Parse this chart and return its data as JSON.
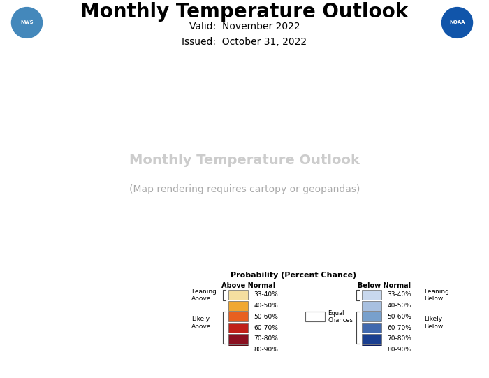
{
  "title": "Monthly Temperature Outlook",
  "valid": "Valid:  November 2022",
  "issued": "Issued:  October 31, 2022",
  "title_fontsize": 20,
  "subtitle_fontsize": 10,
  "background_color": "#ffffff",
  "legend_title": "Probability (Percent Chance)",
  "above_normal_colors": [
    "#F5DFA0",
    "#F0A832",
    "#E86020",
    "#C02018",
    "#8B1020",
    "#5C0810"
  ],
  "above_normal_labels": [
    "33-40%",
    "40-50%",
    "50-60%",
    "60-70%",
    "70-80%",
    "80-90%"
  ],
  "below_normal_colors": [
    "#C8D8EE",
    "#A8C0E0",
    "#78A0CC",
    "#4169AE",
    "#1A3F90",
    "#0A1A60"
  ],
  "below_normal_labels": [
    "33-40%",
    "40-50%",
    "50-60%",
    "60-70%",
    "70-80%",
    "80-90%"
  ],
  "equal_chances_color": "#FFFFFF",
  "state_boundary_color": "#888888",
  "state_fill_equal": "#F2F2F2",
  "state_colors": {
    "WA": "#C8D8EE",
    "OR": "#F2F2F2",
    "CA": "#F2F2F2",
    "NV": "#F2F2F2",
    "ID": "#F2F2F2",
    "UT": "#F5DFA0",
    "AZ": "#F0A832",
    "MT": "#C8D8EE",
    "WY": "#F2F2F2",
    "CO": "#F5DFA0",
    "NM": "#F0A832",
    "ND": "#F5DFA0",
    "SD": "#F0A832",
    "NE": "#F0A832",
    "KS": "#F0A832",
    "OK": "#F0A832",
    "TX": "#F0A832",
    "MN": "#F5DFA0",
    "IA": "#F0A832",
    "MO": "#F0A832",
    "AR": "#F0A832",
    "LA": "#F0A832",
    "WI": "#F5DFA0",
    "IL": "#F0A832",
    "IN": "#F0A832",
    "MI": "#F5DFA0",
    "OH": "#E86020",
    "KY": "#F0A832",
    "TN": "#F0A832",
    "MS": "#F0A832",
    "AL": "#F0A832",
    "GA": "#E86020",
    "FL": "#F0A832",
    "SC": "#E86020",
    "NC": "#E86020",
    "VA": "#E86020",
    "WV": "#E86020",
    "PA": "#E86020",
    "NY": "#C02018",
    "NJ": "#E86020",
    "DE": "#E86020",
    "MD": "#E86020",
    "CT": "#C02018",
    "RI": "#C02018",
    "MA": "#C02018",
    "VT": "#C02018",
    "NH": "#C02018",
    "ME": "#8B1020",
    "DC": "#E86020",
    "AK_main": "#F0A832",
    "AK_southeast": "#C8D8EE"
  }
}
